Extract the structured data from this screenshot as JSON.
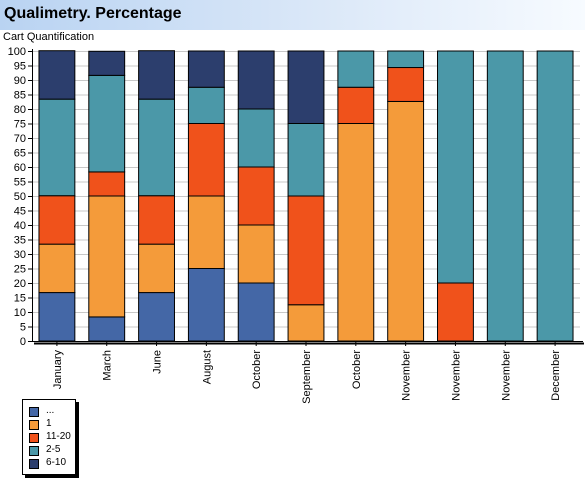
{
  "header": {
    "title": "Qualimetry. Percentage"
  },
  "chart_data": {
    "type": "bar",
    "stacked": true,
    "title": "Qualimetry. Percentage",
    "subtitle": "Cart Quantification",
    "xlabel": "",
    "ylabel": "",
    "ylim": [
      0,
      100
    ],
    "ytick_step": 5,
    "grid": true,
    "legend_position": "bottom-left",
    "categories": [
      "January",
      "March",
      "June",
      "August",
      "October",
      "September",
      "October",
      "November",
      "November",
      "November",
      "December"
    ],
    "series": [
      {
        "name": "...",
        "color": "#4467a6",
        "values": [
          16.7,
          8.3,
          16.7,
          25,
          20,
          0,
          0,
          0,
          0,
          0,
          0
        ]
      },
      {
        "name": "1",
        "color": "#f49b3a",
        "values": [
          16.7,
          41.7,
          16.7,
          25,
          20,
          12.5,
          75,
          82.6,
          0,
          0,
          0
        ]
      },
      {
        "name": "11-20",
        "color": "#f0521b",
        "values": [
          16.7,
          8.3,
          16.7,
          25,
          20,
          37.5,
          12.5,
          11.7,
          20,
          0,
          0
        ]
      },
      {
        "name": "2-5",
        "color": "#4b98a8",
        "values": [
          33.3,
          33.3,
          33.3,
          12.5,
          20,
          25,
          12.5,
          5.7,
          80,
          100,
          100
        ]
      },
      {
        "name": "6-10",
        "color": "#2c3e6d",
        "values": [
          16.7,
          8.3,
          16.7,
          12.5,
          20,
          25,
          0,
          0,
          0,
          0,
          0
        ]
      }
    ]
  }
}
